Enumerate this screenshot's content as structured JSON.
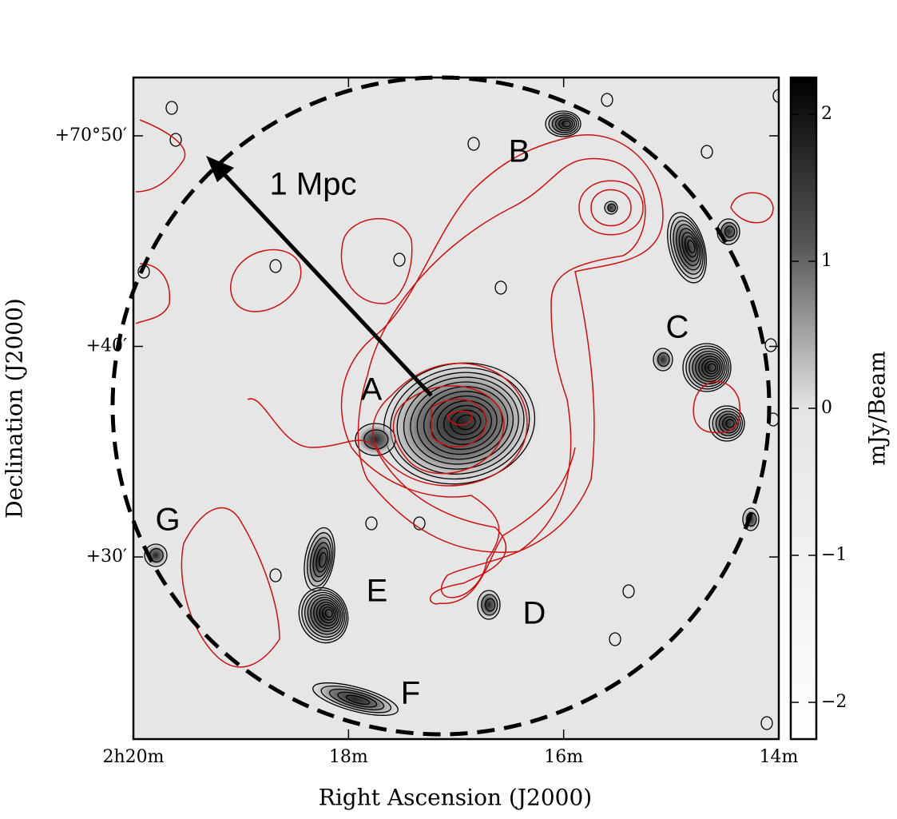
{
  "chart_data": {
    "type": "map",
    "xlabel": "Right Ascension (J2000)",
    "ylabel": "Declination (J2000)",
    "colorbar_label": "mJy/Beam",
    "xlim": [
      140,
      134
    ],
    "xticks": [
      {
        "value": 140,
        "label": "2h20m"
      },
      {
        "value": 138,
        "label": "18m"
      },
      {
        "value": 136,
        "label": "16m"
      },
      {
        "value": 134,
        "label": "14m"
      }
    ],
    "ylim": [
      21.35,
      52.77
    ],
    "yticks": [
      {
        "value": 50,
        "label": "+70°50′"
      },
      {
        "value": 40,
        "label": "+40′"
      },
      {
        "value": 30,
        "label": "+30′"
      }
    ],
    "colorbar_lim": [
      -2.25,
      2.25
    ],
    "colorbar_ticks": [
      2,
      1,
      0,
      {
        "value": -1,
        "label": "−1"
      },
      {
        "value": -2,
        "label": "−2"
      }
    ],
    "annotations": [
      "A",
      "B",
      "C",
      "D",
      "E",
      "F",
      "G",
      "1 Mpc"
    ]
  }
}
